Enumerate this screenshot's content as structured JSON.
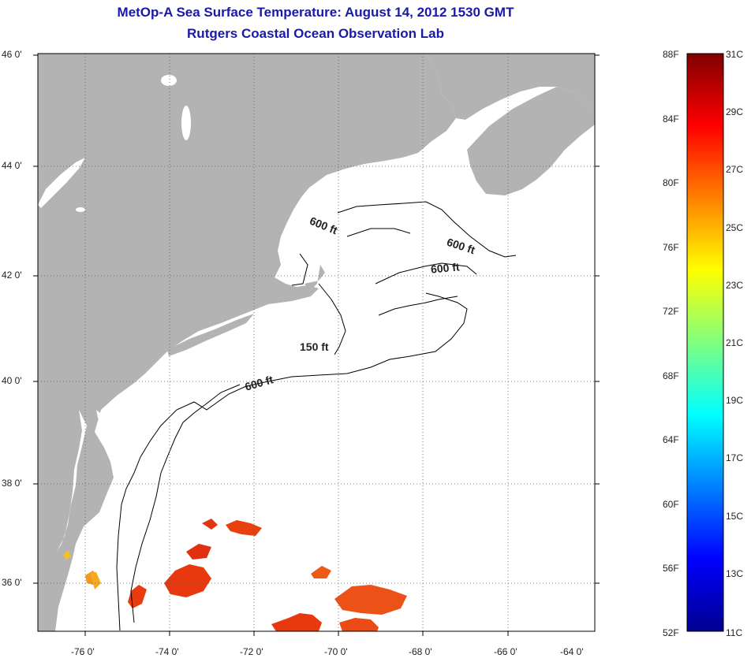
{
  "title": "MetOp-A Sea Surface Temperature:  August 14, 2012 1530 GMT",
  "subtitle": "Rutgers Coastal Ocean Observation Lab",
  "lat_labels": [
    "46 0'",
    "44 0'",
    "42 0'",
    "40 0'",
    "38 0'",
    "36 0'"
  ],
  "lon_labels": [
    "-76 0'",
    "-74 0'",
    "-72 0'",
    "-70 0'",
    "-68 0'",
    "-66 0'",
    "-64 0'"
  ],
  "contour_labels": [
    "600 ft",
    "600 ft",
    "600 ft",
    "150 ft",
    "600 ft"
  ],
  "colorbar": {
    "fahrenheit": [
      "88F",
      "84F",
      "80F",
      "76F",
      "72F",
      "68F",
      "64F",
      "60F",
      "56F",
      "52F"
    ],
    "celsius": [
      "31C",
      "29C",
      "27C",
      "25C",
      "23C",
      "21C",
      "19C",
      "17C",
      "15C",
      "13C",
      "11C"
    ]
  },
  "colors": {
    "land": "#b3b3b3",
    "ocean": "#ffffff",
    "title": "#1a1aa8"
  }
}
